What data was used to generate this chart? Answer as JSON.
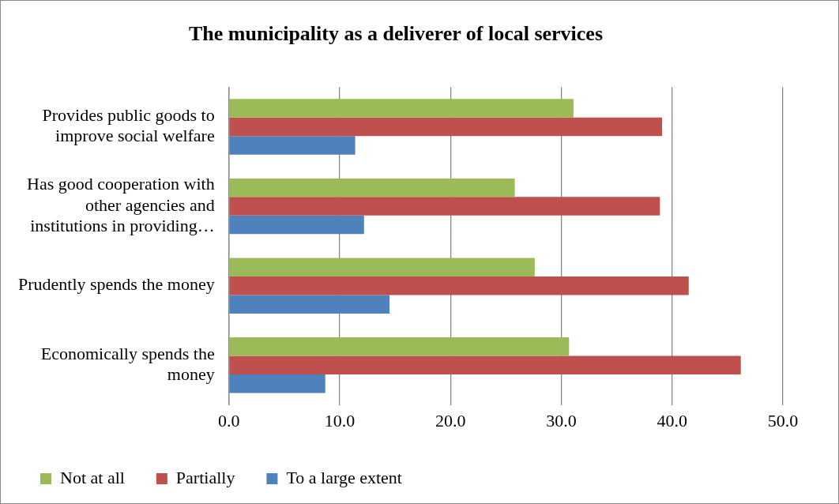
{
  "chart_data": {
    "type": "bar",
    "orientation": "horizontal",
    "title": "The municipality as a deliverer of local services",
    "categories": [
      "Provides public goods to improve social welfare",
      "Has good cooperation with other agencies and institutions in providing…",
      "Prudently spends the money",
      "Economically spends the money"
    ],
    "series": [
      {
        "name": "Not at all",
        "color": "#9bbb59",
        "values": [
          31.1,
          25.8,
          27.6,
          30.7
        ]
      },
      {
        "name": "Partially",
        "color": "#c0504d",
        "values": [
          39.1,
          38.9,
          41.5,
          46.2
        ]
      },
      {
        "name": "To a large extent",
        "color": "#4f81bd",
        "values": [
          11.4,
          12.2,
          14.5,
          8.7
        ]
      }
    ],
    "xlim": [
      0,
      50
    ],
    "xticks": [
      {
        "value": 0,
        "label": "0.0"
      },
      {
        "value": 10,
        "label": "10.0"
      },
      {
        "value": 20,
        "label": "20.0"
      },
      {
        "value": 30,
        "label": "30.0"
      },
      {
        "value": 40,
        "label": "40.0"
      },
      {
        "value": 50,
        "label": "50.0"
      }
    ],
    "grid": "x",
    "legend": "bottom"
  }
}
